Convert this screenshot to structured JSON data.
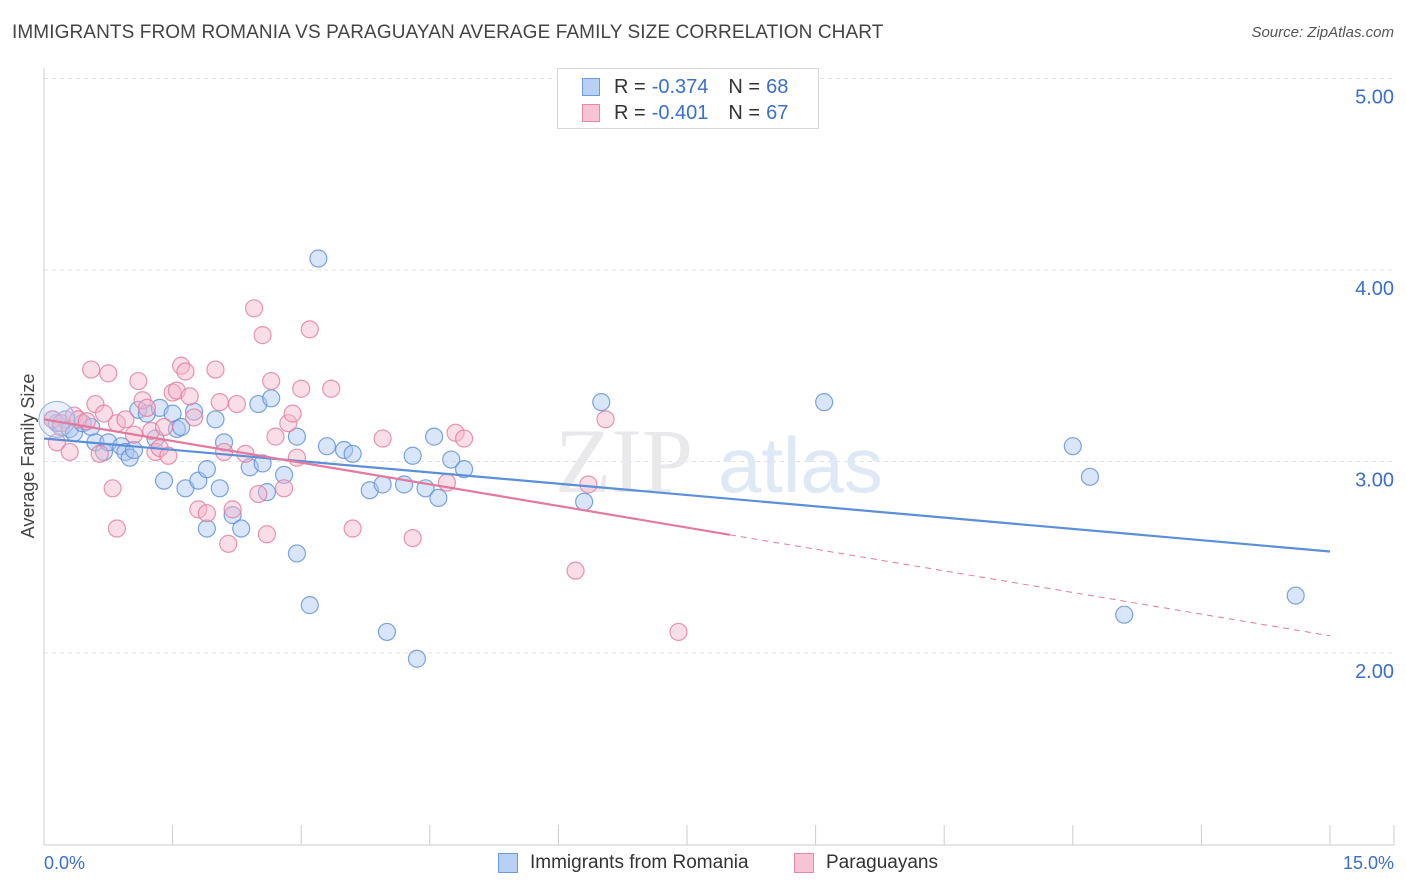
{
  "title": "IMMIGRANTS FROM ROMANIA VS PARAGUAYAN AVERAGE FAMILY SIZE CORRELATION CHART",
  "source": "Source: ZipAtlas.com",
  "watermark": {
    "zip": "ZIP",
    "atlas": "atlas"
  },
  "legend": {
    "rows": [
      {
        "r_label": "R = ",
        "r_value": "-0.374",
        "n_label": "N = ",
        "n_value": "68",
        "color": "#6a9be0",
        "fill": "#b8d0f4"
      },
      {
        "r_label": "R = ",
        "r_value": "-0.401",
        "n_label": "N = ",
        "n_value": "67",
        "color": "#e889a8",
        "fill": "#f7c4d5"
      }
    ]
  },
  "bottom_legend": [
    "Immigrants from Romania",
    "Paraguayans"
  ],
  "chart_data": {
    "type": "scatter",
    "ylabel": "Average Family Size",
    "xlabel": "",
    "x_tick_labels": {
      "min": "0.0%",
      "max": "15.0%"
    },
    "xlim": [
      0,
      15
    ],
    "ylim": [
      1.0,
      5.15
    ],
    "y_ticks": [
      {
        "value": 2.0,
        "label": "2.00"
      },
      {
        "value": 3.0,
        "label": "3.00"
      },
      {
        "value": 4.0,
        "label": "4.00"
      },
      {
        "value": 5.0,
        "label": "5.00"
      }
    ],
    "grid": true,
    "legend_position": "top-center",
    "series": [
      {
        "name": "Immigrants from Romania",
        "color": "#5b8fd9",
        "fill": "#aac6ef",
        "trend": {
          "x0": 0.0,
          "y0": 3.12,
          "x1": 15.0,
          "y1": 2.53,
          "dashed_from": null
        },
        "points": [
          [
            0.1,
            3.22
          ],
          [
            0.15,
            3.2
          ],
          [
            0.2,
            3.18
          ],
          [
            0.25,
            3.22
          ],
          [
            0.3,
            3.17
          ],
          [
            0.35,
            3.15
          ],
          [
            0.45,
            3.2
          ],
          [
            0.55,
            3.18
          ],
          [
            0.6,
            3.1
          ],
          [
            0.7,
            3.05
          ],
          [
            0.75,
            3.1
          ],
          [
            0.9,
            3.08
          ],
          [
            0.95,
            3.05
          ],
          [
            1.0,
            3.02
          ],
          [
            1.05,
            3.06
          ],
          [
            1.1,
            3.27
          ],
          [
            1.2,
            3.25
          ],
          [
            1.3,
            3.12
          ],
          [
            1.35,
            3.28
          ],
          [
            1.4,
            2.9
          ],
          [
            1.5,
            3.25
          ],
          [
            1.55,
            3.17
          ],
          [
            1.6,
            3.18
          ],
          [
            1.65,
            2.86
          ],
          [
            1.75,
            3.26
          ],
          [
            1.8,
            2.9
          ],
          [
            1.9,
            2.96
          ],
          [
            1.9,
            2.65
          ],
          [
            2.0,
            3.22
          ],
          [
            2.05,
            2.86
          ],
          [
            2.1,
            3.1
          ],
          [
            2.2,
            2.72
          ],
          [
            2.3,
            2.65
          ],
          [
            2.4,
            2.97
          ],
          [
            2.5,
            3.3
          ],
          [
            2.55,
            2.99
          ],
          [
            2.6,
            2.84
          ],
          [
            2.65,
            3.33
          ],
          [
            2.8,
            2.93
          ],
          [
            2.95,
            3.13
          ],
          [
            2.95,
            2.52
          ],
          [
            3.1,
            2.25
          ],
          [
            3.2,
            4.06
          ],
          [
            3.3,
            3.08
          ],
          [
            3.5,
            3.06
          ],
          [
            3.6,
            3.04
          ],
          [
            3.8,
            2.85
          ],
          [
            3.95,
            2.88
          ],
          [
            4.0,
            2.11
          ],
          [
            4.2,
            2.88
          ],
          [
            4.3,
            3.03
          ],
          [
            4.35,
            1.97
          ],
          [
            4.45,
            2.86
          ],
          [
            4.55,
            3.13
          ],
          [
            4.6,
            2.81
          ],
          [
            4.75,
            3.01
          ],
          [
            4.9,
            2.96
          ],
          [
            6.3,
            2.79
          ],
          [
            6.5,
            3.31
          ],
          [
            9.1,
            3.31
          ],
          [
            12.0,
            3.08
          ],
          [
            12.2,
            2.92
          ],
          [
            12.6,
            2.2
          ],
          [
            14.6,
            2.3
          ]
        ]
      },
      {
        "name": "Paraguayans",
        "color": "#e37a9e",
        "fill": "#f4b5ca",
        "trend": {
          "x0": 0.0,
          "y0": 3.22,
          "x1": 15.0,
          "y1": 2.09,
          "dashed_from": 8.0
        },
        "points": [
          [
            0.1,
            3.22
          ],
          [
            0.15,
            3.1
          ],
          [
            0.2,
            3.2
          ],
          [
            0.3,
            3.05
          ],
          [
            0.35,
            3.24
          ],
          [
            0.4,
            3.22
          ],
          [
            0.5,
            3.21
          ],
          [
            0.55,
            3.48
          ],
          [
            0.6,
            3.3
          ],
          [
            0.65,
            3.04
          ],
          [
            0.7,
            3.25
          ],
          [
            0.75,
            3.46
          ],
          [
            0.8,
            2.86
          ],
          [
            0.85,
            3.2
          ],
          [
            0.85,
            2.65
          ],
          [
            0.95,
            3.22
          ],
          [
            1.05,
            3.14
          ],
          [
            1.1,
            3.42
          ],
          [
            1.15,
            3.32
          ],
          [
            1.2,
            3.28
          ],
          [
            1.25,
            3.16
          ],
          [
            1.3,
            3.05
          ],
          [
            1.35,
            3.07
          ],
          [
            1.4,
            3.18
          ],
          [
            1.45,
            3.03
          ],
          [
            1.5,
            3.36
          ],
          [
            1.55,
            3.37
          ],
          [
            1.6,
            3.5
          ],
          [
            1.65,
            3.47
          ],
          [
            1.7,
            3.34
          ],
          [
            1.75,
            3.23
          ],
          [
            1.8,
            2.75
          ],
          [
            1.9,
            2.73
          ],
          [
            2.0,
            3.48
          ],
          [
            2.05,
            3.31
          ],
          [
            2.1,
            3.05
          ],
          [
            2.15,
            2.57
          ],
          [
            2.2,
            2.75
          ],
          [
            2.25,
            3.3
          ],
          [
            2.35,
            3.04
          ],
          [
            2.45,
            3.8
          ],
          [
            2.5,
            2.83
          ],
          [
            2.55,
            3.66
          ],
          [
            2.6,
            2.62
          ],
          [
            2.65,
            3.42
          ],
          [
            2.7,
            3.13
          ],
          [
            2.8,
            2.86
          ],
          [
            2.85,
            3.2
          ],
          [
            2.9,
            3.25
          ],
          [
            2.95,
            3.02
          ],
          [
            3.0,
            3.38
          ],
          [
            3.1,
            3.69
          ],
          [
            3.35,
            3.38
          ],
          [
            3.6,
            2.65
          ],
          [
            3.95,
            3.12
          ],
          [
            4.3,
            2.6
          ],
          [
            4.7,
            2.89
          ],
          [
            4.8,
            3.15
          ],
          [
            4.9,
            3.12
          ],
          [
            6.2,
            2.43
          ],
          [
            6.55,
            3.22
          ],
          [
            6.35,
            2.88
          ],
          [
            7.4,
            2.11
          ]
        ]
      }
    ]
  }
}
